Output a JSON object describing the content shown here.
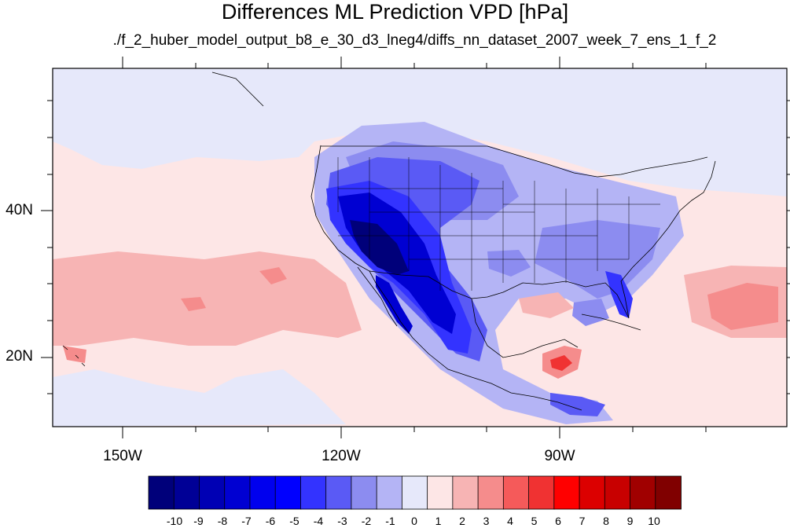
{
  "figure": {
    "title": "Differences ML Prediction VPD [hPa]",
    "subtitle": "./f_2_huber_model_output_b8_e_30_d3_lneg4/diffs_nn_dataset_2007_week_7_ens_1_f_2",
    "lon_labels": [
      "150W",
      "120W",
      "90W"
    ],
    "lat_labels": [
      "40N",
      "20N"
    ]
  },
  "colorbar": {
    "labels": [
      "-10",
      "-9",
      "-8",
      "-7",
      "-6",
      "-5",
      "-4",
      "-3",
      "-2",
      "-1",
      "0",
      "1",
      "2",
      "3",
      "4",
      "5",
      "6",
      "7",
      "8",
      "9",
      "10"
    ],
    "colors": [
      "#00007a",
      "#000096",
      "#0000b4",
      "#0000d2",
      "#0000ee",
      "#0000ff",
      "#3333ff",
      "#5a5af5",
      "#8c8cf0",
      "#b4b4f5",
      "#e6e8fa",
      "#fde6e6",
      "#f7b4b4",
      "#f58c8c",
      "#f55a5a",
      "#f03232",
      "#ff0000",
      "#dc0000",
      "#c80000",
      "#a00000",
      "#800000"
    ]
  },
  "chart_data": {
    "type": "heatmap",
    "title": "Differences ML Prediction VPD [hPa]",
    "subtitle": "./f_2_huber_model_output_b8_e_30_d3_lneg4/diffs_nn_dataset_2007_week_7_ens_1_f_2",
    "xlabel": "",
    "ylabel": "",
    "x_tick_labels": [
      "150W",
      "120W",
      "90W"
    ],
    "y_tick_labels": [
      "40N",
      "20N"
    ],
    "lon_range": [
      -159.3,
      -60.8
    ],
    "lat_range": [
      10.9,
      59.6
    ],
    "colorbar_levels": [
      -10,
      -9,
      -8,
      -7,
      -6,
      -5,
      -4,
      -3,
      -2,
      -1,
      0,
      1,
      2,
      3,
      4,
      5,
      6,
      7,
      8,
      9,
      10
    ],
    "regions": [
      {
        "name": "Pacific background west of California",
        "value": 0.5
      },
      {
        "name": "Gulf of Alaska / northern Canada",
        "value": -0.5
      },
      {
        "name": "subtropical Pacific",
        "value": 1.5
      },
      {
        "name": "Pacific near Baja California",
        "value": 2.5
      },
      {
        "name": "U.S. Southwest and northern Mexico",
        "value": -8.5
      },
      {
        "name": "Sierra Madre of Mexico",
        "value": -6.5
      },
      {
        "name": "Great Basin and Rocky Mountains",
        "value": -5
      },
      {
        "name": "northern Great Plains",
        "value": -3.5
      },
      {
        "name": "southern Great Plains",
        "value": -2.5
      },
      {
        "name": "U.S. Southeast and Florida",
        "value": -3.5
      },
      {
        "name": "Ohio Valley and Midwest",
        "value": -2
      },
      {
        "name": "U.S. Northeast",
        "value": -0.5
      },
      {
        "name": "Gulf of Mexico",
        "value": 0.5
      },
      {
        "name": "Yucatan Peninsula",
        "value": 4.5
      },
      {
        "name": "Central America Pacific coast",
        "value": -3.5
      },
      {
        "name": "western tropical Atlantic",
        "value": 3.5
      },
      {
        "name": "Hawaii",
        "value": 2.5
      }
    ]
  }
}
